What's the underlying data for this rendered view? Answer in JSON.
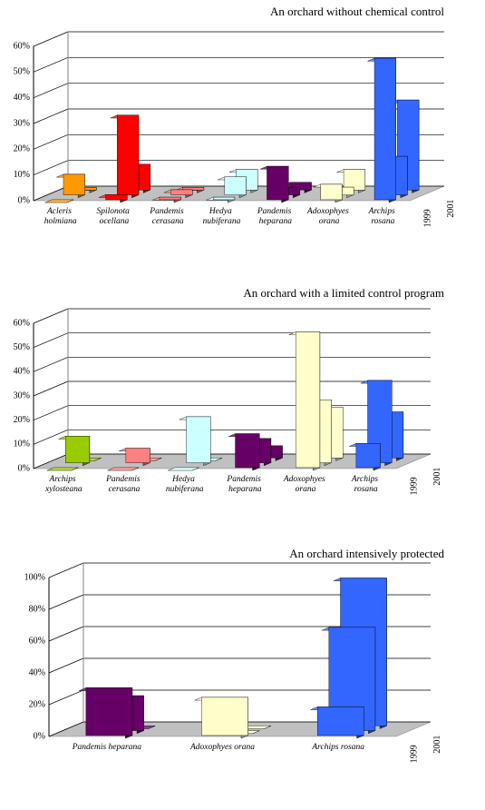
{
  "chart_data": [
    {
      "type": "bar3d",
      "title": "An orchard without chemical control",
      "categories": [
        "Acleris holmiana",
        "Spilonota ocellana",
        "Pandemis cerasana",
        "Hedya nubiferana",
        "Pandemis heparana",
        "Adoxophyes orana",
        "Archips rosana"
      ],
      "colors": [
        "#ff9900",
        "#ff0000",
        "#ff8080",
        "#ccffff",
        "#660066",
        "#ffffcc",
        "#3366ff"
      ],
      "series": [
        {
          "name": "1999",
          "values": [
            0,
            2,
            1,
            1,
            13,
            6,
            55
          ]
        },
        {
          "name": null,
          "values": [
            8,
            31,
            2,
            7,
            3,
            3,
            15
          ]
        },
        {
          "name": "2001",
          "values": [
            1,
            10,
            1,
            8,
            3,
            8,
            35
          ]
        }
      ],
      "ylim": [
        0,
        60
      ],
      "yticks": [
        {
          "value": 0,
          "label": "0%"
        },
        {
          "value": 10,
          "label": "10%"
        },
        {
          "value": 20,
          "label": "20%"
        },
        {
          "value": 30,
          "label": "30%"
        },
        {
          "value": 40,
          "label": "40%"
        },
        {
          "value": 50,
          "label": "50%"
        },
        {
          "value": 60,
          "label": "60%"
        }
      ],
      "grid": true
    },
    {
      "type": "bar3d",
      "title": "An orchard with a limited control program",
      "categories": [
        "Archips xylosteana",
        "Pandemis cerasana",
        "Hedya nubiferana",
        "Pandemis heparana",
        "Adoxophyes orana",
        "Archips rosana"
      ],
      "colors": [
        "#99cc00",
        "#ff8080",
        "#ccffff",
        "#660066",
        "#ffffcc",
        "#3366ff"
      ],
      "series": [
        {
          "name": "1999",
          "values": [
            0,
            0,
            0,
            14,
            56,
            10
          ]
        },
        {
          "name": null,
          "values": [
            11,
            6,
            19,
            10,
            26,
            34
          ]
        },
        {
          "name": "2001",
          "values": [
            0,
            0,
            0,
            5,
            21,
            19
          ]
        }
      ],
      "ylim": [
        0,
        60
      ],
      "yticks": [
        {
          "value": 0,
          "label": "0%"
        },
        {
          "value": 10,
          "label": "10%"
        },
        {
          "value": 20,
          "label": "20%"
        },
        {
          "value": 30,
          "label": "30%"
        },
        {
          "value": 40,
          "label": "40%"
        },
        {
          "value": 50,
          "label": "50%"
        },
        {
          "value": 60,
          "label": "60%"
        }
      ],
      "grid": true
    },
    {
      "type": "bar3d",
      "title": "An orchard intensively protected",
      "categories": [
        "Pandemis heparana",
        "Adoxophyes orana",
        "Archips rosana"
      ],
      "colors": [
        "#660066",
        "#ffffcc",
        "#3366ff"
      ],
      "series": [
        {
          "name": "1999",
          "values": [
            30,
            24,
            18
          ]
        },
        {
          "name": null,
          "values": [
            22,
            0,
            65
          ]
        },
        {
          "name": "2001",
          "values": [
            0,
            0,
            93
          ]
        }
      ],
      "ylim": [
        0,
        100
      ],
      "yticks": [
        {
          "value": 0,
          "label": "0%"
        },
        {
          "value": 20,
          "label": "20%"
        },
        {
          "value": 40,
          "label": "40%"
        },
        {
          "value": 60,
          "label": "60%"
        },
        {
          "value": 80,
          "label": "80%"
        },
        {
          "value": 100,
          "label": "100%"
        }
      ],
      "grid": true
    }
  ]
}
